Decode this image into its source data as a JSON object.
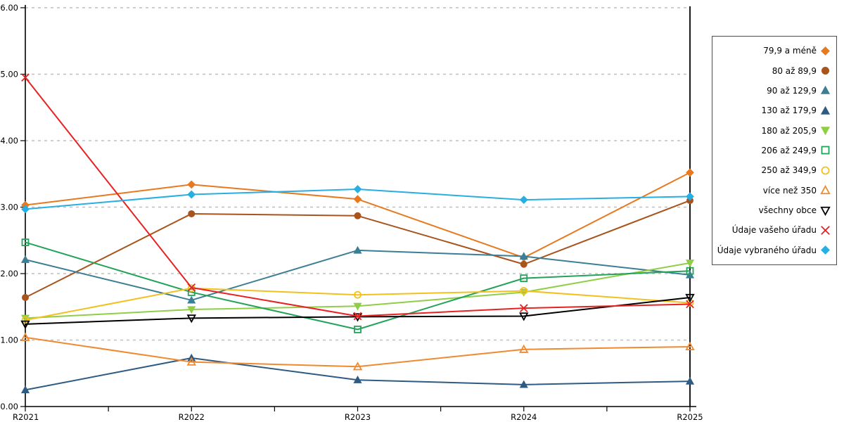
{
  "chart_data": {
    "type": "line",
    "title": "",
    "x_categories": [
      "R2021",
      "R2022",
      "R2023",
      "R2024",
      "R2025"
    ],
    "y_ticks": [
      "0.00",
      "1.00",
      "2.00",
      "3.00",
      "4.00",
      "5.00",
      "6.00"
    ],
    "ylim": [
      0,
      6
    ],
    "grid": {
      "horizontal": true,
      "style": "dashed",
      "color": "#bfbfbf"
    },
    "legend_position": "right",
    "axis_color": "#000000",
    "series": [
      {
        "name": "79,9 a méně",
        "color": "#e8791e",
        "marker": "diamond",
        "marker_filled": true,
        "values": [
          3.03,
          3.34,
          3.12,
          2.24,
          3.52
        ]
      },
      {
        "name": "80 až 89,9",
        "color": "#a8541e",
        "marker": "circle",
        "marker_filled": true,
        "values": [
          1.64,
          2.9,
          2.87,
          2.14,
          3.1
        ]
      },
      {
        "name": "90 až 129,9",
        "color": "#3b7e96",
        "marker": "triangle-up",
        "marker_filled": true,
        "values": [
          2.21,
          1.6,
          2.35,
          2.26,
          1.98
        ]
      },
      {
        "name": "130 až 179,9",
        "color": "#2f5b83",
        "marker": "triangle-up",
        "marker_filled": true,
        "values": [
          0.25,
          0.73,
          0.4,
          0.33,
          0.38
        ]
      },
      {
        "name": "180 až 205,9",
        "color": "#8fce45",
        "marker": "triangle-down",
        "marker_filled": true,
        "values": [
          1.33,
          1.46,
          1.51,
          1.72,
          2.16
        ]
      },
      {
        "name": "206 až 249,9",
        "color": "#23a25a",
        "marker": "square",
        "marker_filled": false,
        "values": [
          2.47,
          1.72,
          1.16,
          1.93,
          2.04
        ]
      },
      {
        "name": "250 až 349,9",
        "color": "#f2c11e",
        "marker": "circle",
        "marker_filled": false,
        "values": [
          1.3,
          1.78,
          1.68,
          1.74,
          1.56
        ]
      },
      {
        "name": "více než 350",
        "color": "#f08930",
        "marker": "triangle-up",
        "marker_filled": false,
        "values": [
          1.04,
          0.67,
          0.6,
          0.86,
          0.9
        ]
      },
      {
        "name": "všechny obce",
        "color": "#000000",
        "marker": "triangle-down",
        "marker_filled": false,
        "values": [
          1.24,
          1.33,
          1.35,
          1.36,
          1.64
        ]
      },
      {
        "name": "Údaje vašeho úřadu",
        "color": "#e82222",
        "marker": "x",
        "marker_filled": false,
        "values": [
          4.95,
          1.79,
          1.36,
          1.48,
          1.54
        ]
      },
      {
        "name": "Údaje vybraného úřadu",
        "color": "#27aee3",
        "marker": "diamond",
        "marker_filled": true,
        "values": [
          2.97,
          3.19,
          3.27,
          3.11,
          3.16
        ]
      }
    ]
  }
}
